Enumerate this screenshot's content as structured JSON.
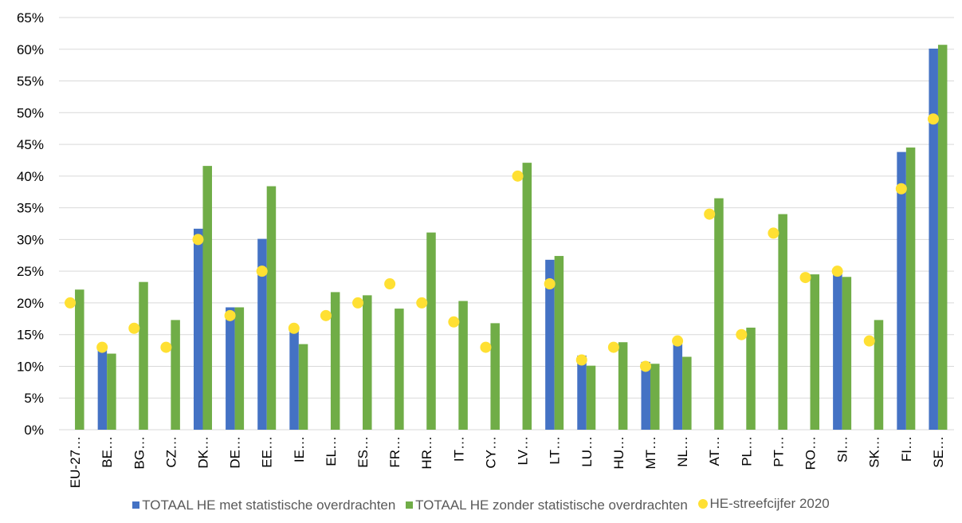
{
  "chart_data": {
    "type": "bar",
    "title": "",
    "xlabel": "",
    "ylabel": "",
    "ylim": [
      0,
      0.65
    ],
    "y_ticks": [
      "0%",
      "5%",
      "10%",
      "15%",
      "20%",
      "25%",
      "30%",
      "35%",
      "40%",
      "45%",
      "50%",
      "55%",
      "60%",
      "65%"
    ],
    "grid": true,
    "legend_position": "bottom",
    "categories": [
      "EU-27…",
      "BE…",
      "BG…",
      "CZ…",
      "DK…",
      "DE…",
      "EE…",
      "IE…",
      "EL…",
      "ES…",
      "FR…",
      "HR…",
      "IT…",
      "CY…",
      "LV…",
      "LT…",
      "LU…",
      "HU…",
      "MT…",
      "NL…",
      "AT…",
      "PL…",
      "PT…",
      "RO…",
      "SI…",
      "SK…",
      "FI…",
      "SE…"
    ],
    "series": [
      {
        "name": "TOTAAL HE met statistische overdrachten",
        "kind": "bar",
        "color": "#4472C4",
        "values": [
          null,
          0.13,
          null,
          null,
          0.317,
          0.193,
          0.301,
          0.162,
          null,
          null,
          null,
          null,
          null,
          null,
          null,
          0.268,
          0.117,
          null,
          0.107,
          0.14,
          null,
          null,
          null,
          null,
          0.25,
          null,
          0.438,
          0.601
        ]
      },
      {
        "name": "TOTAAL HE zonder statistische overdrachten",
        "kind": "bar",
        "color": "#70AD47",
        "values": [
          0.221,
          0.12,
          0.233,
          0.173,
          0.416,
          0.193,
          0.384,
          0.135,
          0.217,
          0.212,
          0.191,
          0.311,
          0.203,
          0.168,
          0.421,
          0.274,
          0.101,
          0.138,
          0.104,
          0.115,
          0.365,
          0.161,
          0.34,
          0.245,
          0.241,
          0.173,
          0.445,
          0.607
        ]
      },
      {
        "name": "HE-streefcijfer 2020",
        "kind": "marker",
        "color": "#FFE033",
        "values": [
          0.2,
          0.13,
          0.16,
          0.13,
          0.3,
          0.18,
          0.25,
          0.16,
          0.18,
          0.2,
          0.23,
          0.2,
          0.17,
          0.13,
          0.4,
          0.23,
          0.11,
          0.13,
          0.1,
          0.14,
          0.34,
          0.15,
          0.31,
          0.24,
          0.25,
          0.14,
          0.38,
          0.49
        ]
      }
    ]
  }
}
